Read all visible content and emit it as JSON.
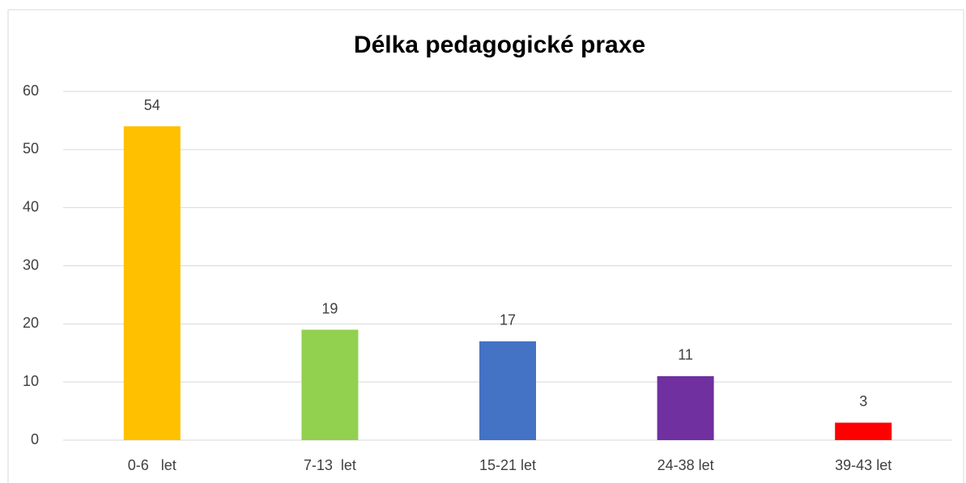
{
  "chart_data": {
    "type": "bar",
    "title": "Délka pedagogické praxe",
    "categories": [
      "0-6   let",
      "7-13  let",
      "15-21 let",
      "24-38 let",
      "39-43 let"
    ],
    "values": [
      54,
      19,
      17,
      11,
      3
    ],
    "colors": [
      "#ffc000",
      "#92d050",
      "#4472c4",
      "#7030a0",
      "#ff0000"
    ],
    "ylim": [
      0,
      60
    ],
    "yticks": [
      0,
      10,
      20,
      30,
      40,
      50,
      60
    ],
    "grid": true
  }
}
